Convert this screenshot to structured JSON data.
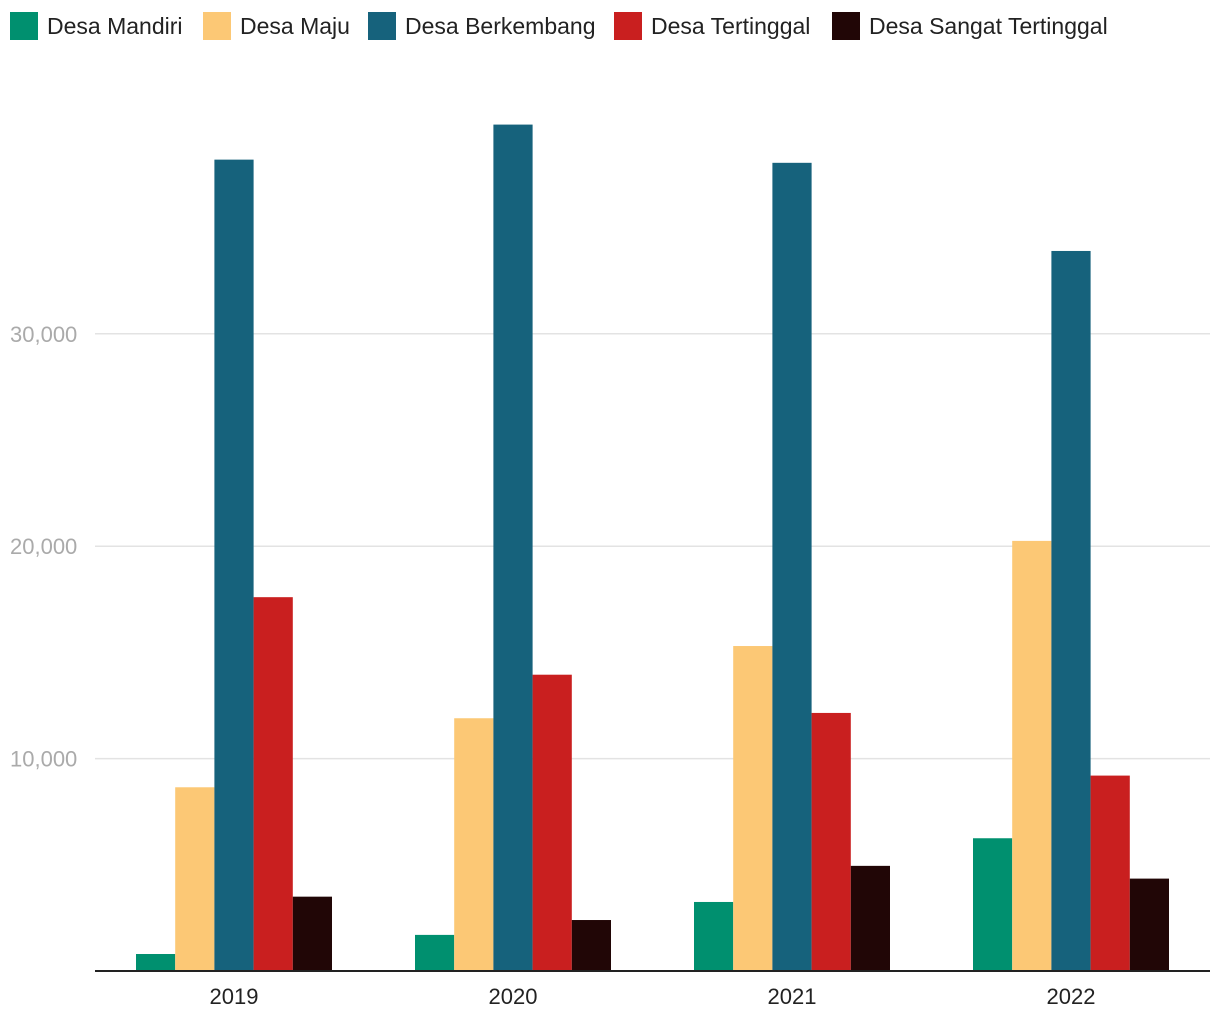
{
  "chart_data": {
    "type": "bar",
    "categories": [
      "2019",
      "2020",
      "2021",
      "2022"
    ],
    "series": [
      {
        "name": "Desa Mandiri",
        "color": "#00906f",
        "values": [
          800,
          1700,
          3250,
          6250
        ]
      },
      {
        "name": "Desa Maju",
        "color": "#fcc875",
        "values": [
          8650,
          11900,
          15300,
          20250
        ]
      },
      {
        "name": "Desa Berkembang",
        "color": "#16627c",
        "values": [
          38200,
          39850,
          38050,
          33900
        ]
      },
      {
        "name": "Desa Tertinggal",
        "color": "#c91f1f",
        "values": [
          17600,
          13950,
          12150,
          9200
        ]
      },
      {
        "name": "Desa Sangat Tertinggal",
        "color": "#210606",
        "values": [
          3500,
          2400,
          4950,
          4350
        ]
      }
    ],
    "y_ticks": [
      "10,000",
      "20,000",
      "30,000"
    ],
    "y_tick_values": [
      10000,
      20000,
      30000
    ],
    "ylim": [
      0,
      45000
    ],
    "grid": true,
    "legend_position": "top"
  }
}
